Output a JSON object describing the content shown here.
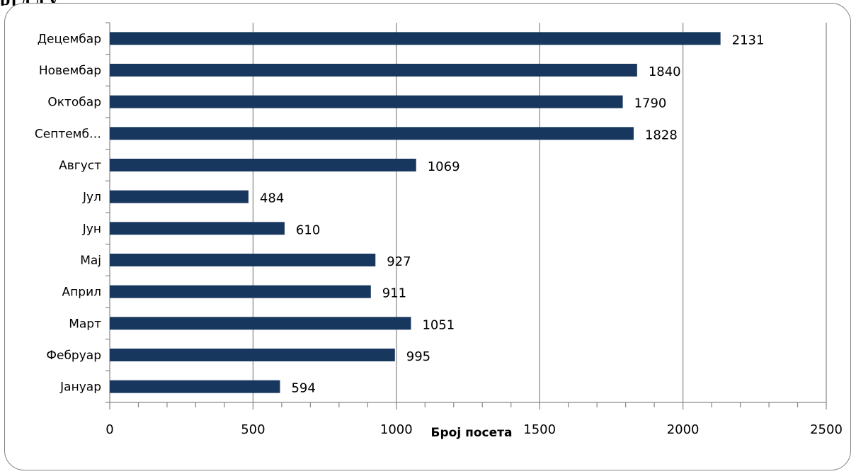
{
  "colors": {
    "bar": "#17375e",
    "grid": "#868686",
    "axis": "#868686",
    "frame": "#7f7f7f"
  },
  "header": {
    "cut_text": "рј                       д                          д     у"
  },
  "chart_data": {
    "type": "bar",
    "orientation": "horizontal",
    "title": "",
    "xlabel": "Број посета",
    "ylabel": "",
    "xlim": [
      0,
      2500
    ],
    "xticks": [
      0,
      500,
      1000,
      1500,
      2000,
      2500
    ],
    "grid": true,
    "legend": "none",
    "categories": [
      "Јануар",
      "Фебруар",
      "Март",
      "Април",
      "Мај",
      "Јун",
      "Јул",
      "Август",
      "Септемб…",
      "Октобар",
      "Новембар",
      "Децембар"
    ],
    "values": [
      594,
      995,
      1051,
      911,
      927,
      610,
      484,
      1069,
      1828,
      1790,
      1840,
      2131
    ]
  }
}
